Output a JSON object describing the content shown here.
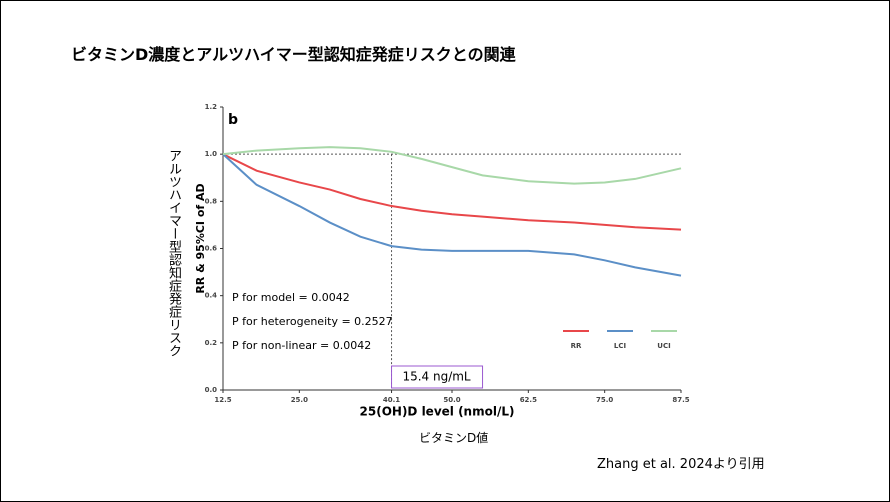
{
  "slide": {
    "title": "ビタミンD濃度とアルツハイマー型認知症発症リスクとの関連",
    "y_label": "アルツハイマー型認知症発症リスク",
    "x_label": "ビタミンD値",
    "citation": "Zhang et al. 2024より引用"
  },
  "chart_data": {
    "type": "line",
    "panel_label": "b",
    "x_label": "25(OH)D level (nmol/L)",
    "y_label": "RR & 95%CI of AD",
    "x": [
      12.5,
      18,
      25,
      30,
      35,
      40.1,
      45,
      50,
      55,
      62.5,
      70,
      75,
      80,
      87.5
    ],
    "series": [
      {
        "name": "RR",
        "color": "#e8474a",
        "values": [
          1.0,
          0.93,
          0.88,
          0.85,
          0.81,
          0.78,
          0.76,
          0.745,
          0.735,
          0.72,
          0.71,
          0.7,
          0.69,
          0.68
        ]
      },
      {
        "name": "LCI",
        "color": "#5b8fc7",
        "values": [
          1.0,
          0.87,
          0.78,
          0.71,
          0.65,
          0.61,
          0.595,
          0.59,
          0.59,
          0.59,
          0.575,
          0.55,
          0.52,
          0.485
        ]
      },
      {
        "name": "UCI",
        "color": "#a8d8a8",
        "values": [
          1.0,
          1.015,
          1.025,
          1.03,
          1.025,
          1.01,
          0.98,
          0.945,
          0.91,
          0.885,
          0.875,
          0.88,
          0.895,
          0.94
        ]
      }
    ],
    "xlim": [
      12.5,
      87.5
    ],
    "ylim": [
      0,
      1.2
    ],
    "xticks": [
      12.5,
      {
        "value": 25,
        "label": "25.0"
      },
      40.1,
      {
        "value": 50,
        "label": "50.0"
      },
      62.5,
      {
        "value": 75,
        "label": "75.0"
      },
      87.5
    ],
    "yticks": [
      {
        "value": 0,
        "label": "0.0"
      },
      0.2,
      0.4,
      0.6,
      0.8,
      {
        "value": 1,
        "label": "1.0"
      },
      1.2
    ],
    "reference_y": 1,
    "reference_x": 40.1,
    "reference_x_label": "15.4 ng/mL",
    "annotations": [
      "P for model = 0.0042",
      "P for heterogeneity = 0.2527",
      "P for non-linear = 0.0042"
    ],
    "legend": "lower right"
  }
}
